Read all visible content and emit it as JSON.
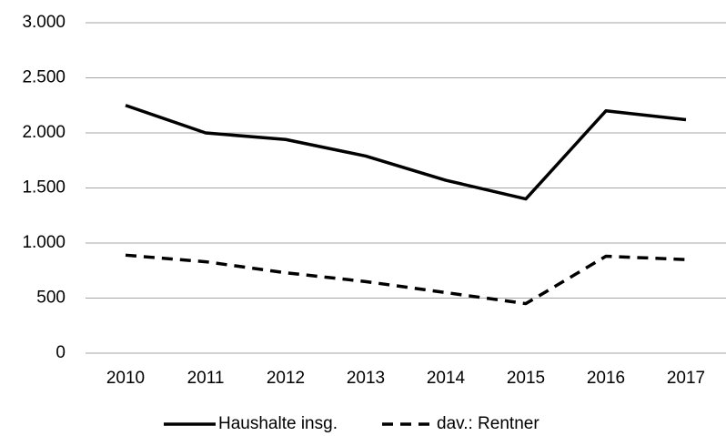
{
  "chart_data": {
    "type": "line",
    "categories": [
      "2010",
      "2011",
      "2012",
      "2013",
      "2014",
      "2015",
      "2016",
      "2017"
    ],
    "series": [
      {
        "name": "Haushalte insg.",
        "color": "#000000",
        "line_style": "solid",
        "values": [
          2250,
          2000,
          1940,
          1790,
          1570,
          1400,
          2200,
          2120
        ]
      },
      {
        "name": "dav.: Rentner",
        "color": "#000000",
        "line_style": "dashed",
        "values": [
          890,
          830,
          730,
          650,
          550,
          450,
          880,
          850
        ]
      }
    ],
    "ylim": [
      0,
      3000
    ],
    "yticks": [
      0,
      500,
      {
        "value": 1000,
        "label": "1.000"
      },
      {
        "value": 1500,
        "label": "1.500"
      },
      {
        "value": 2000,
        "label": "2.000"
      },
      {
        "value": 2500,
        "label": "2.500"
      },
      {
        "value": 3000,
        "label": "3.000"
      }
    ],
    "grid": true,
    "legend": "bottom"
  }
}
